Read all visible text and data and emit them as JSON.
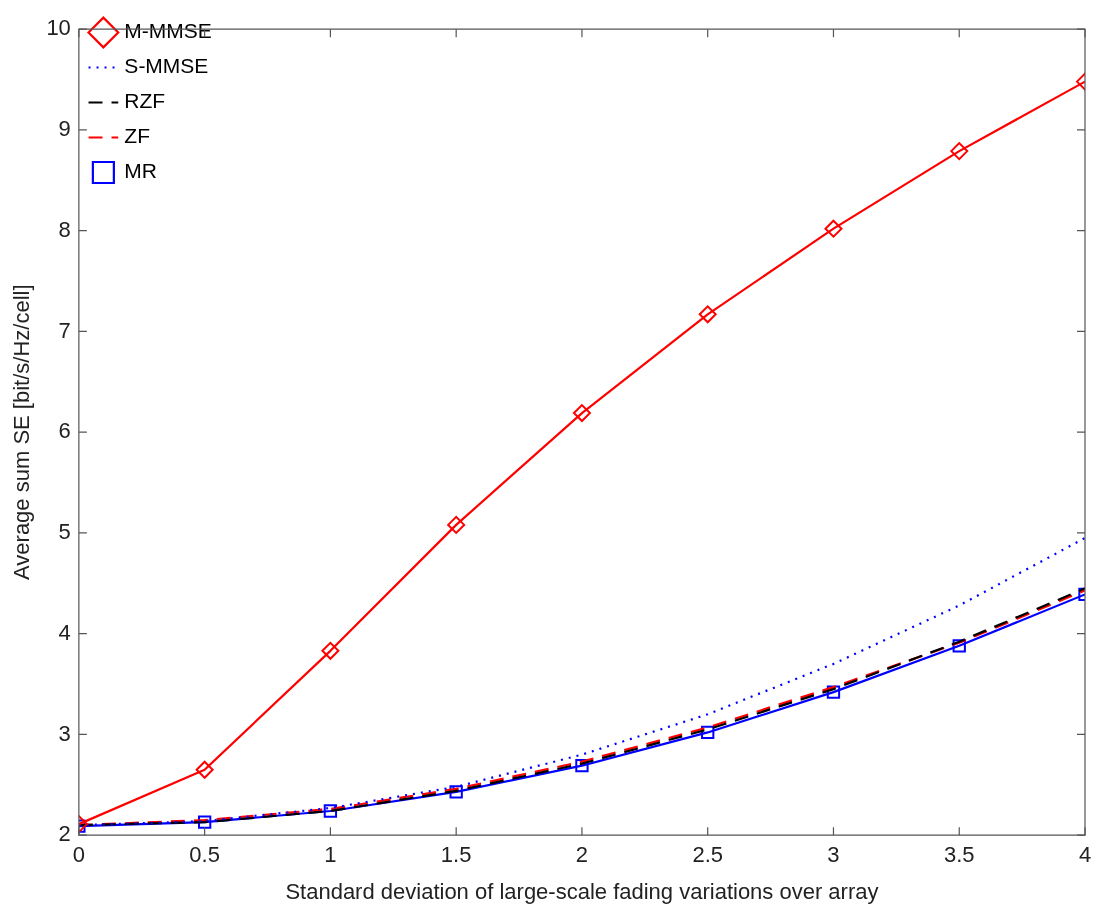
{
  "chart_data": {
    "type": "line",
    "xlabel": "Standard deviation of large-scale fading variations over array",
    "ylabel": "Average sum SE [bit/s/Hz/cell]",
    "x": [
      0,
      0.5,
      1,
      1.5,
      2,
      2.5,
      3,
      3.5,
      4
    ],
    "series": [
      {
        "name": "M-MMSE",
        "color": "#ff0000",
        "marker": "diamond",
        "line_style": "solid",
        "values": [
          2.11,
          2.65,
          3.83,
          5.08,
          6.19,
          7.17,
          8.02,
          8.79,
          9.48
        ]
      },
      {
        "name": "S-MMSE",
        "color": "#0000ff",
        "marker": "none",
        "line_style": "dotted",
        "values": [
          2.1,
          2.14,
          2.27,
          2.48,
          2.8,
          3.2,
          3.7,
          4.28,
          4.95
        ]
      },
      {
        "name": "RZF",
        "color": "#000000",
        "marker": "none",
        "line_style": "dashed",
        "values": [
          2.1,
          2.13,
          2.24,
          2.44,
          2.71,
          3.05,
          3.45,
          3.92,
          4.45
        ]
      },
      {
        "name": "ZF",
        "color": "#ff0000",
        "marker": "none",
        "line_style": "dashed",
        "values": [
          2.1,
          2.15,
          2.26,
          2.46,
          2.73,
          3.07,
          3.47,
          3.91,
          4.43
        ]
      },
      {
        "name": "MR",
        "color": "#0000ff",
        "marker": "square",
        "line_style": "solid",
        "values": [
          2.09,
          2.13,
          2.24,
          2.43,
          2.69,
          3.02,
          3.42,
          3.88,
          4.39
        ]
      }
    ],
    "xlim": [
      0,
      4
    ],
    "xticks": [
      0,
      0.5,
      1,
      1.5,
      2,
      2.5,
      3,
      3.5,
      4
    ],
    "ylim": [
      2,
      10
    ],
    "yticks": [
      2,
      3,
      4,
      5,
      6,
      7,
      8,
      9,
      10
    ],
    "grid": false,
    "legend": "top left"
  }
}
